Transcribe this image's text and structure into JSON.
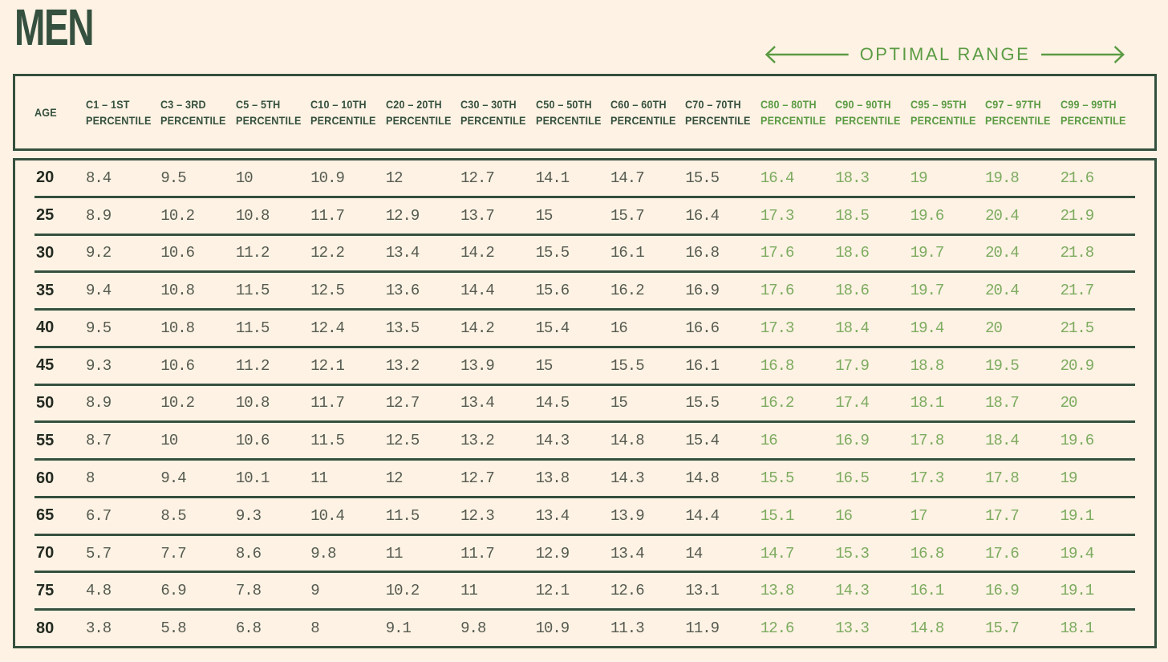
{
  "page": {
    "title": "MEN",
    "optimal_range_label": "OPTIMAL RANGE"
  },
  "colors": {
    "background": "#fdf2e3",
    "dark_green": "#35503e",
    "bright_green": "#5b9b44",
    "optimal_value_green": "#7dab60",
    "value_gray": "#565b51",
    "age_dark": "#232a21"
  },
  "table": {
    "age_header": "AGE",
    "percentile_word": "PERCENTILE",
    "columns": [
      {
        "label": "C1 – 1ST",
        "optimal": false
      },
      {
        "label": "C3 – 3RD",
        "optimal": false
      },
      {
        "label": "C5 – 5TH",
        "optimal": false
      },
      {
        "label": "C10 – 10TH",
        "optimal": false
      },
      {
        "label": "C20 – 20TH",
        "optimal": false
      },
      {
        "label": "C30 – 30TH",
        "optimal": false
      },
      {
        "label": "C50 – 50TH",
        "optimal": false
      },
      {
        "label": "C60 – 60TH",
        "optimal": false
      },
      {
        "label": "C70 – 70TH",
        "optimal": false
      },
      {
        "label": "C80 – 80TH",
        "optimal": true
      },
      {
        "label": "C90 – 90TH",
        "optimal": true
      },
      {
        "label": "C95 – 95TH",
        "optimal": true
      },
      {
        "label": "C97 – 97TH",
        "optimal": true
      },
      {
        "label": "C99 – 99TH",
        "optimal": true
      }
    ],
    "rows": [
      {
        "age": "20",
        "values": [
          "8.4",
          "9.5",
          "10",
          "10.9",
          "12",
          "12.7",
          "14.1",
          "14.7",
          "15.5",
          "16.4",
          "18.3",
          "19",
          "19.8",
          "21.6"
        ]
      },
      {
        "age": "25",
        "values": [
          "8.9",
          "10.2",
          "10.8",
          "11.7",
          "12.9",
          "13.7",
          "15",
          "15.7",
          "16.4",
          "17.3",
          "18.5",
          "19.6",
          "20.4",
          "21.9"
        ]
      },
      {
        "age": "30",
        "values": [
          "9.2",
          "10.6",
          "11.2",
          "12.2",
          "13.4",
          "14.2",
          "15.5",
          "16.1",
          "16.8",
          "17.6",
          "18.6",
          "19.7",
          "20.4",
          "21.8"
        ]
      },
      {
        "age": "35",
        "values": [
          "9.4",
          "10.8",
          "11.5",
          "12.5",
          "13.6",
          "14.4",
          "15.6",
          "16.2",
          "16.9",
          "17.6",
          "18.6",
          "19.7",
          "20.4",
          "21.7"
        ]
      },
      {
        "age": "40",
        "values": [
          "9.5",
          "10.8",
          "11.5",
          "12.4",
          "13.5",
          "14.2",
          "15.4",
          "16",
          "16.6",
          "17.3",
          "18.4",
          "19.4",
          "20",
          "21.5"
        ]
      },
      {
        "age": "45",
        "values": [
          "9.3",
          "10.6",
          "11.2",
          "12.1",
          "13.2",
          "13.9",
          "15",
          "15.5",
          "16.1",
          "16.8",
          "17.9",
          "18.8",
          "19.5",
          "20.9"
        ]
      },
      {
        "age": "50",
        "values": [
          "8.9",
          "10.2",
          "10.8",
          "11.7",
          "12.7",
          "13.4",
          "14.5",
          "15",
          "15.5",
          "16.2",
          "17.4",
          "18.1",
          "18.7",
          "20"
        ]
      },
      {
        "age": "55",
        "values": [
          "8.7",
          "10",
          "10.6",
          "11.5",
          "12.5",
          "13.2",
          "14.3",
          "14.8",
          "15.4",
          "16",
          "16.9",
          "17.8",
          "18.4",
          "19.6"
        ]
      },
      {
        "age": "60",
        "values": [
          "8",
          "9.4",
          "10.1",
          "11",
          "12",
          "12.7",
          "13.8",
          "14.3",
          "14.8",
          "15.5",
          "16.5",
          "17.3",
          "17.8",
          "19"
        ]
      },
      {
        "age": "65",
        "values": [
          "6.7",
          "8.5",
          "9.3",
          "10.4",
          "11.5",
          "12.3",
          "13.4",
          "13.9",
          "14.4",
          "15.1",
          "16",
          "17",
          "17.7",
          "19.1"
        ]
      },
      {
        "age": "70",
        "values": [
          "5.7",
          "7.7",
          "8.6",
          "9.8",
          "11",
          "11.7",
          "12.9",
          "13.4",
          "14",
          "14.7",
          "15.3",
          "16.8",
          "17.6",
          "19.4"
        ]
      },
      {
        "age": "75",
        "values": [
          "4.8",
          "6.9",
          "7.8",
          "9",
          "10.2",
          "11",
          "12.1",
          "12.6",
          "13.1",
          "13.8",
          "14.3",
          "16.1",
          "16.9",
          "19.1"
        ]
      },
      {
        "age": "80",
        "values": [
          "3.8",
          "5.8",
          "6.8",
          "8",
          "9.1",
          "9.8",
          "10.9",
          "11.3",
          "11.9",
          "12.6",
          "13.3",
          "14.8",
          "15.7",
          "18.1"
        ]
      }
    ]
  }
}
